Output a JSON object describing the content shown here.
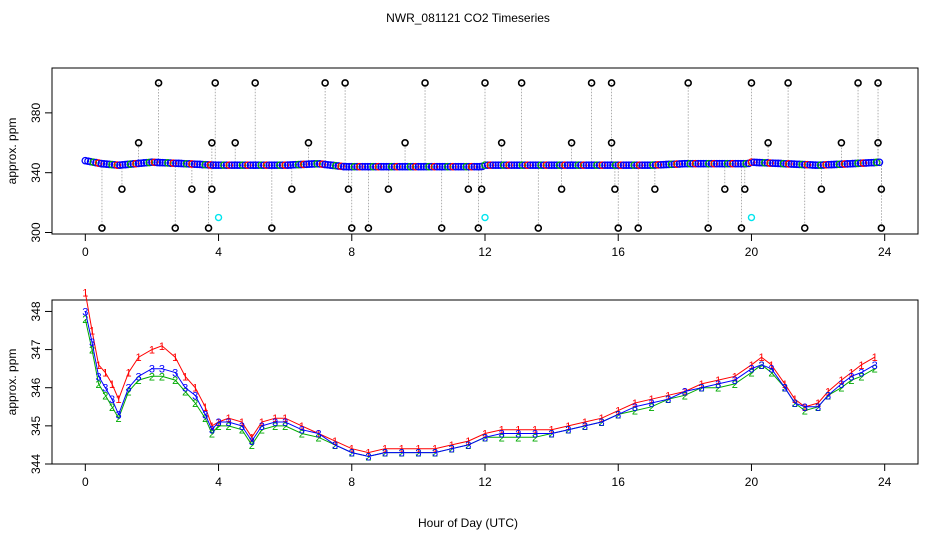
{
  "chart_data": [
    {
      "panel": "top",
      "type": "scatter",
      "title": "NWR_081121  CO2 Timeseries",
      "xlabel": "",
      "ylabel": "approx. ppm",
      "xlim": [
        -1,
        25
      ],
      "ylim": [
        299,
        410
      ],
      "x_ticks": [
        0,
        4,
        8,
        12,
        16,
        20,
        24
      ],
      "y_ticks": [
        300,
        340,
        380
      ],
      "grid": false,
      "baseline": {
        "x": [
          0.0,
          0.5,
          1.0,
          2.0,
          3.0,
          3.9,
          4.0,
          5.0,
          6.0,
          7.0,
          7.8,
          8.0,
          9.0,
          10.0,
          11.0,
          11.9,
          12.0,
          13.0,
          14.0,
          15.0,
          15.9,
          16.0,
          17.0,
          18.0,
          19.0,
          19.9,
          20.0,
          21.0,
          22.0,
          23.0,
          23.9
        ],
        "y": [
          348,
          346,
          345,
          347,
          346,
          345,
          345,
          345,
          345,
          346,
          344,
          344,
          344,
          344,
          344,
          344,
          345,
          345,
          345,
          345,
          345,
          345,
          345,
          346,
          346,
          346,
          347,
          346,
          345,
          346,
          347
        ]
      },
      "high_spikes": {
        "x": [
          2.2,
          3.9,
          5.1,
          7.2,
          7.8,
          10.2,
          12.0,
          13.1,
          15.2,
          15.8,
          18.1,
          20.0,
          21.1,
          23.2,
          23.8
        ],
        "y": [
          400,
          400,
          400,
          400,
          400,
          400,
          400,
          400,
          400,
          400,
          400,
          400,
          400,
          400,
          400
        ]
      },
      "mid_spikes": {
        "x": [
          1.6,
          3.8,
          4.5,
          6.7,
          9.6,
          12.5,
          14.6,
          15.8,
          20.5,
          22.7,
          23.8
        ],
        "y": [
          360,
          360,
          360,
          360,
          360,
          360,
          360,
          360,
          360,
          360,
          360
        ]
      },
      "low_spikes": {
        "x": [
          1.1,
          3.2,
          3.8,
          6.2,
          7.9,
          9.1,
          11.5,
          11.9,
          14.3,
          15.9,
          17.1,
          19.2,
          19.8,
          22.1,
          23.9
        ],
        "y": [
          329,
          329,
          329,
          329,
          329,
          329,
          329,
          329,
          329,
          329,
          329,
          329,
          329,
          329,
          329
        ]
      },
      "bottom_spikes": {
        "x": [
          0.5,
          2.7,
          3.7,
          5.6,
          8.0,
          8.5,
          10.7,
          11.8,
          13.6,
          16.0,
          16.6,
          18.7,
          19.7,
          21.6,
          23.9
        ],
        "y": [
          303,
          303,
          303,
          303,
          303,
          303,
          303,
          303,
          303,
          303,
          303,
          303,
          303,
          303,
          303
        ]
      },
      "cyan_points": {
        "x": [
          4.0,
          12.0,
          20.0
        ],
        "y": [
          310,
          310,
          310
        ]
      },
      "colors": {
        "main": "#0000ff",
        "secondary": "#00aa00",
        "tertiary": "#ff0000",
        "spike": "#000000",
        "special": "#00e5ee"
      }
    },
    {
      "panel": "bottom",
      "type": "scatter",
      "title": "",
      "xlabel": "Hour of Day (UTC)",
      "ylabel": "approx. ppm",
      "xlim": [
        -1,
        25
      ],
      "ylim": [
        344,
        348.3
      ],
      "x_ticks": [
        0,
        4,
        8,
        12,
        16,
        20,
        24
      ],
      "y_ticks": [
        344,
        345,
        346,
        347,
        348
      ],
      "grid": false,
      "legend": "none",
      "series": [
        {
          "name": "1",
          "marker": "1",
          "color": "#ff0000",
          "x": [
            0.0,
            0.2,
            0.4,
            0.6,
            0.8,
            1.0,
            1.3,
            1.6,
            2.0,
            2.3,
            2.7,
            3.0,
            3.3,
            3.6,
            3.8,
            4.0,
            4.3,
            4.7,
            5.0,
            5.3,
            5.7,
            6.0,
            6.5,
            7.0,
            7.5,
            8.0,
            8.5,
            9.0,
            9.5,
            10.0,
            10.5,
            11.0,
            11.5,
            12.0,
            12.5,
            13.0,
            13.5,
            14.0,
            14.5,
            15.0,
            15.5,
            16.0,
            16.5,
            17.0,
            17.5,
            18.0,
            18.5,
            19.0,
            19.5,
            20.0,
            20.3,
            20.6,
            21.0,
            21.3,
            21.6,
            22.0,
            22.3,
            22.7,
            23.0,
            23.3,
            23.7
          ],
          "y": [
            348.5,
            347.5,
            346.6,
            346.4,
            346.1,
            345.7,
            346.4,
            346.8,
            347.0,
            347.1,
            346.8,
            346.3,
            346.0,
            345.5,
            345.0,
            345.1,
            345.2,
            345.1,
            344.7,
            345.1,
            345.2,
            345.2,
            345.0,
            344.8,
            344.6,
            344.4,
            344.3,
            344.4,
            344.4,
            344.4,
            344.4,
            344.5,
            344.6,
            344.8,
            344.9,
            344.9,
            344.9,
            344.9,
            345.0,
            345.1,
            345.2,
            345.4,
            345.6,
            345.7,
            345.8,
            345.9,
            346.1,
            346.2,
            346.3,
            346.6,
            346.8,
            346.6,
            346.1,
            345.7,
            345.5,
            345.6,
            345.9,
            346.2,
            346.4,
            346.6,
            346.8
          ]
        },
        {
          "name": "2",
          "marker": "2",
          "color": "#00aa00",
          "x": [
            0.0,
            0.2,
            0.4,
            0.6,
            0.8,
            1.0,
            1.3,
            1.6,
            2.0,
            2.3,
            2.7,
            3.0,
            3.3,
            3.6,
            3.8,
            4.0,
            4.3,
            4.7,
            5.0,
            5.3,
            5.7,
            6.0,
            6.5,
            7.0,
            7.5,
            8.0,
            8.5,
            9.0,
            9.5,
            10.0,
            10.5,
            11.0,
            11.5,
            12.0,
            12.5,
            13.0,
            13.5,
            14.0,
            14.5,
            15.0,
            15.5,
            16.0,
            16.5,
            17.0,
            17.5,
            18.0,
            18.5,
            19.0,
            19.5,
            20.0,
            20.3,
            20.6,
            21.0,
            21.3,
            21.6,
            22.0,
            22.3,
            22.7,
            23.0,
            23.3,
            23.7
          ],
          "y": [
            347.8,
            347.0,
            346.1,
            345.8,
            345.5,
            345.2,
            345.9,
            346.2,
            346.3,
            346.3,
            346.2,
            345.9,
            345.6,
            345.2,
            344.8,
            345.0,
            345.0,
            344.9,
            344.5,
            344.9,
            345.0,
            345.0,
            344.8,
            344.7,
            344.5,
            344.3,
            344.2,
            344.3,
            344.3,
            344.3,
            344.3,
            344.4,
            344.5,
            344.7,
            344.7,
            344.7,
            344.7,
            344.8,
            344.9,
            345.0,
            345.1,
            345.3,
            345.4,
            345.5,
            345.7,
            345.8,
            346.0,
            346.0,
            346.1,
            346.4,
            346.6,
            346.4,
            346.0,
            345.6,
            345.4,
            345.5,
            345.8,
            346.0,
            346.2,
            346.3,
            346.5
          ]
        },
        {
          "name": "3",
          "marker": "3",
          "color": "#0000ff",
          "x": [
            0.0,
            0.2,
            0.4,
            0.6,
            0.8,
            1.0,
            1.3,
            1.6,
            2.0,
            2.3,
            2.7,
            3.0,
            3.3,
            3.6,
            3.8,
            4.0,
            4.3,
            4.7,
            5.0,
            5.3,
            5.7,
            6.0,
            6.5,
            7.0,
            7.5,
            8.0,
            8.5,
            9.0,
            9.5,
            10.0,
            10.5,
            11.0,
            11.5,
            12.0,
            12.5,
            13.0,
            13.5,
            14.0,
            14.5,
            15.0,
            15.5,
            16.0,
            16.5,
            17.0,
            17.5,
            18.0,
            18.5,
            19.0,
            19.5,
            20.0,
            20.3,
            20.6,
            21.0,
            21.3,
            21.6,
            22.0,
            22.3,
            22.7,
            23.0,
            23.3,
            23.7
          ],
          "y": [
            348.0,
            347.2,
            346.3,
            346.0,
            345.7,
            345.3,
            346.0,
            346.3,
            346.5,
            346.5,
            346.4,
            346.0,
            345.8,
            345.3,
            344.9,
            345.1,
            345.1,
            345.0,
            344.6,
            345.0,
            345.1,
            345.1,
            344.9,
            344.8,
            344.5,
            344.3,
            344.2,
            344.3,
            344.3,
            344.3,
            344.3,
            344.4,
            344.5,
            344.7,
            344.8,
            344.8,
            344.8,
            344.8,
            344.9,
            345.0,
            345.1,
            345.3,
            345.5,
            345.6,
            345.7,
            345.9,
            346.0,
            346.1,
            346.2,
            346.5,
            346.6,
            346.5,
            346.0,
            345.6,
            345.5,
            345.5,
            345.8,
            346.1,
            346.3,
            346.4,
            346.6
          ]
        }
      ]
    }
  ]
}
